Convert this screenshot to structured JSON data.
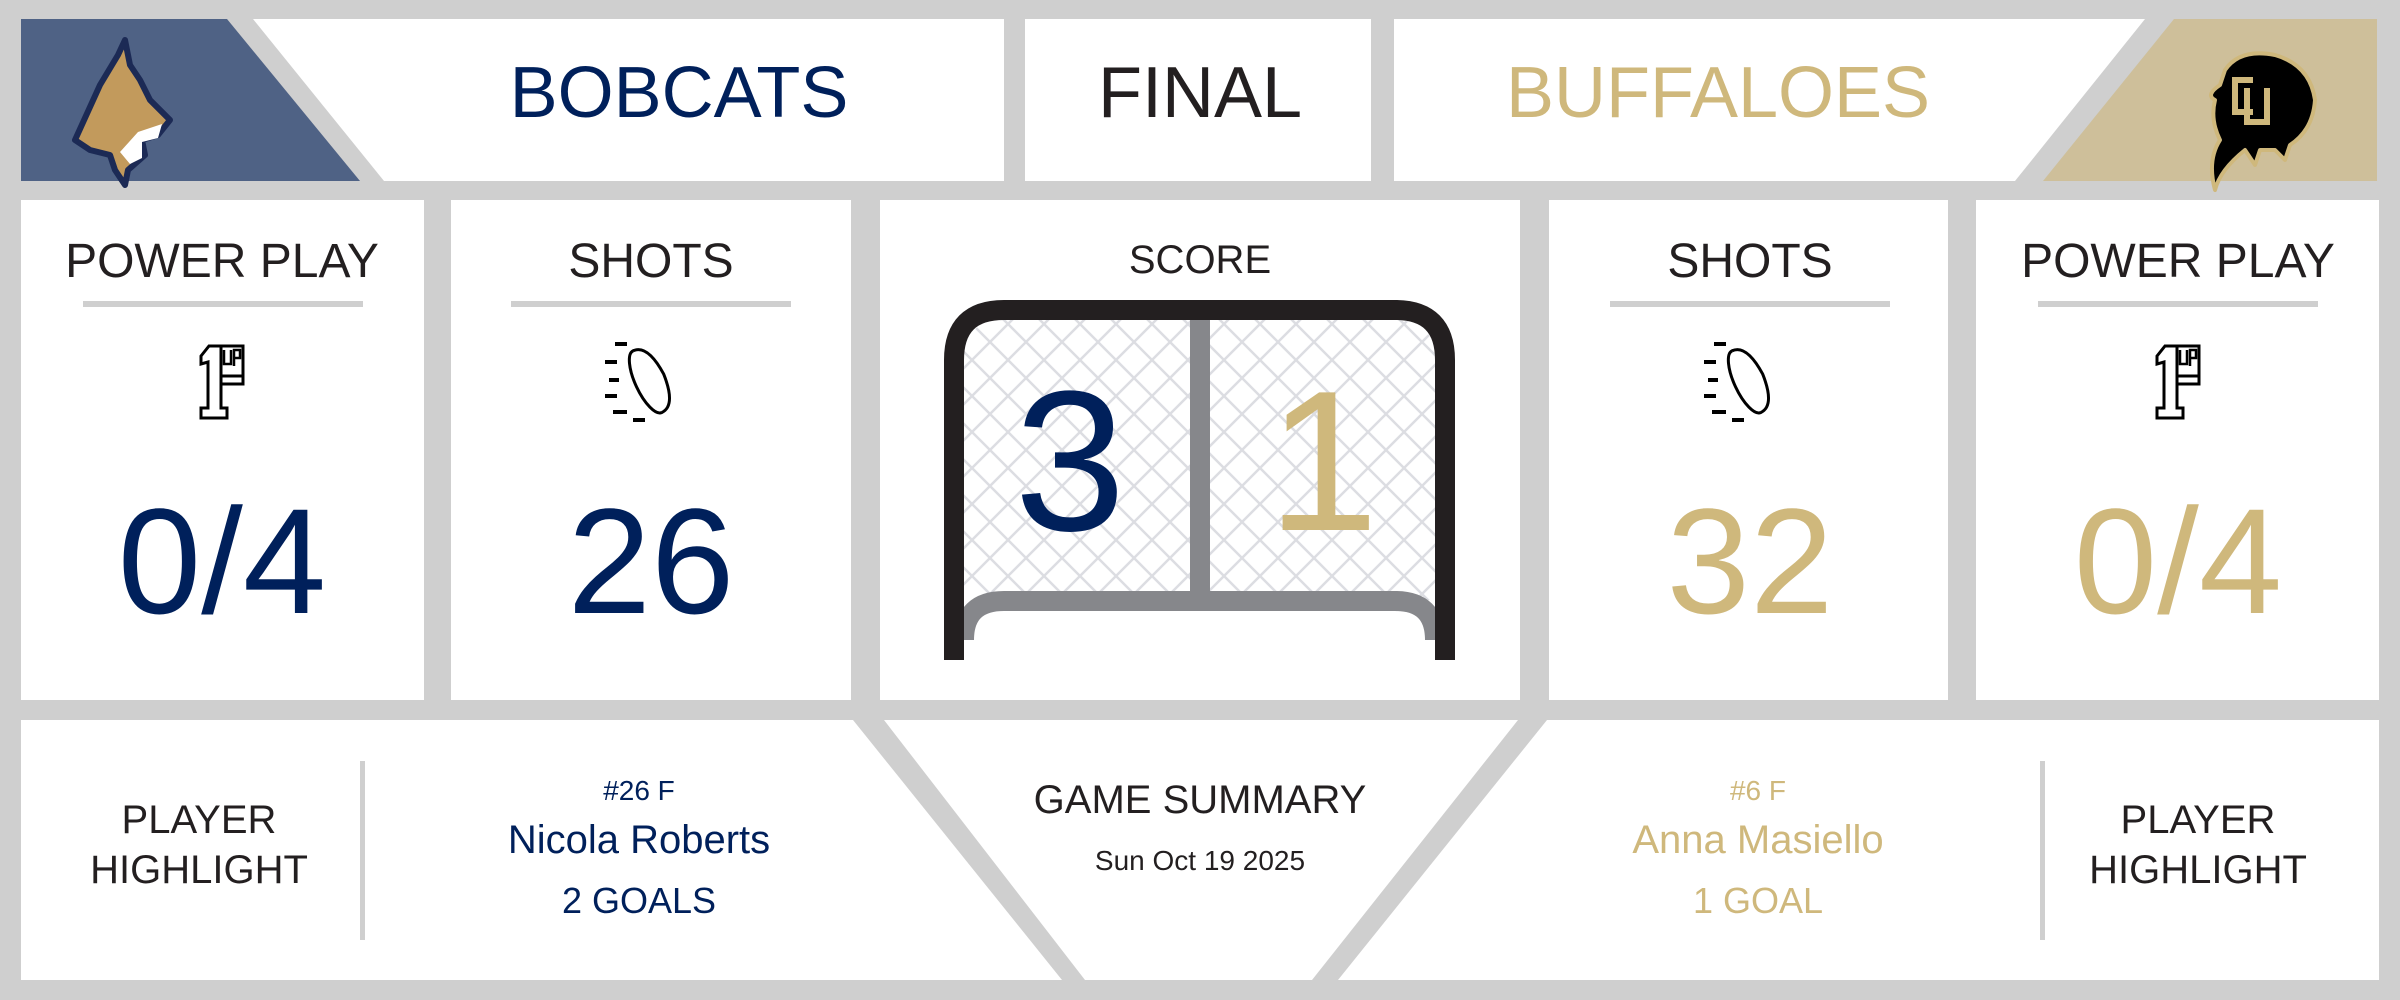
{
  "header": {
    "home_team": "BOBCATS",
    "status": "FINAL",
    "away_team": "BUFFALOES",
    "home_logo_icon": "bobcat-logo-icon",
    "away_logo_icon": "buffalo-logo-icon"
  },
  "stats": {
    "home": {
      "power_play_label": "POWER PLAY",
      "power_play_value": "0/4",
      "shots_label": "SHOTS",
      "shots_value": "26"
    },
    "away": {
      "power_play_label": "POWER PLAY",
      "power_play_value": "0/4",
      "shots_label": "SHOTS",
      "shots_value": "32"
    },
    "power_play_icon": "1up-icon",
    "shots_icon": "hockey-puck-icon"
  },
  "score": {
    "label": "SCORE",
    "home": "3",
    "away": "1",
    "icon": "hockey-net-icon"
  },
  "highlights": {
    "home": {
      "label_line1": "PLAYER",
      "label_line2": "HIGHLIGHT",
      "number_position": "#26 F",
      "name": "Nicola Roberts",
      "stat": "2 GOALS"
    },
    "away": {
      "label_line1": "PLAYER",
      "label_line2": "HIGHLIGHT",
      "number_position": "#6 F",
      "name": "Anna Masiello",
      "stat": "1 GOAL"
    }
  },
  "summary": {
    "title": "GAME SUMMARY",
    "date": "Sun Oct 19 2025"
  },
  "colors": {
    "home_primary": "#00205b",
    "home_logo_bg": "#4f6285",
    "away_primary": "#cfb87c",
    "away_logo_bg": "#cebf9a",
    "background": "#cfcfcf",
    "text_dark": "#231f20"
  }
}
